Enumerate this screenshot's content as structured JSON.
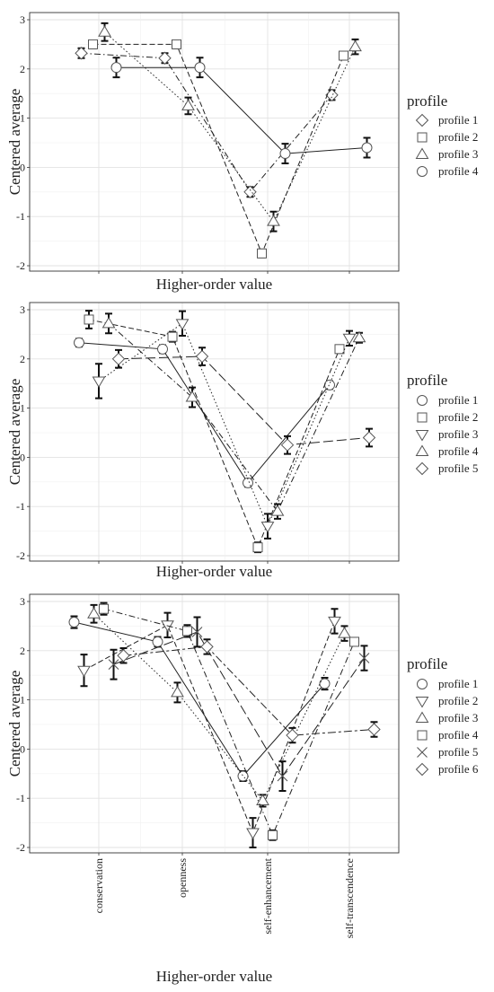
{
  "chart_data": [
    {
      "type": "line",
      "xlabel": "Higher-order value",
      "ylabel": "Centered average",
      "ylim": [
        -2,
        3
      ],
      "yticks": [
        "-2",
        "-1",
        "0",
        "1",
        "2",
        "3"
      ],
      "categories": [
        "conservation",
        "openness",
        "self-enhancement",
        "self-transcendence"
      ],
      "grid": true,
      "legend": {
        "title": "profile",
        "position": "right"
      },
      "series": [
        {
          "name": "profile 1",
          "marker": "diamond",
          "dash": "dashdot",
          "values": [
            2.32,
            2.22,
            -0.5,
            1.47
          ],
          "errors": [
            0.1,
            0.1,
            0.1,
            0.1
          ]
        },
        {
          "name": "profile 2",
          "marker": "square",
          "dash": "dash",
          "values": [
            2.5,
            2.5,
            -1.75,
            2.27
          ],
          "errors": [
            0.08,
            0.08,
            0.08,
            0.06
          ]
        },
        {
          "name": "profile 3",
          "marker": "triangle-up",
          "dash": "dotted",
          "values": [
            2.75,
            1.25,
            -1.1,
            2.45
          ],
          "errors": [
            0.18,
            0.17,
            0.2,
            0.15
          ]
        },
        {
          "name": "profile 4",
          "marker": "circle",
          "dash": "solid",
          "values": [
            2.03,
            2.03,
            0.28,
            0.4
          ],
          "errors": [
            0.2,
            0.2,
            0.2,
            0.2
          ]
        }
      ]
    },
    {
      "type": "line",
      "xlabel": "Higher-order value",
      "ylabel": "Centered average",
      "ylim": [
        -2,
        3
      ],
      "yticks": [
        "-2",
        "-1",
        "0",
        "1",
        "2",
        "3"
      ],
      "categories": [
        "conservation",
        "openness",
        "self-enhancement",
        "self-transcendence"
      ],
      "grid": true,
      "legend": {
        "title": "profile",
        "position": "right"
      },
      "series": [
        {
          "name": "profile 1",
          "marker": "circle",
          "dash": "solid",
          "values": [
            2.33,
            2.2,
            -0.52,
            1.47
          ],
          "errors": [
            0.08,
            0.08,
            0.08,
            0.08
          ]
        },
        {
          "name": "profile 2",
          "marker": "square",
          "dash": "dash",
          "values": [
            2.8,
            2.45,
            -1.83,
            2.2
          ],
          "errors": [
            0.18,
            0.1,
            0.1,
            0.08
          ]
        },
        {
          "name": "profile 3",
          "marker": "triangle-down",
          "dash": "dotted",
          "values": [
            1.55,
            2.72,
            -1.4,
            2.42
          ],
          "errors": [
            0.35,
            0.25,
            0.25,
            0.15
          ]
        },
        {
          "name": "profile 4",
          "marker": "triangle-up",
          "dash": "dashdot",
          "values": [
            2.72,
            1.22,
            -1.1,
            2.43
          ],
          "errors": [
            0.2,
            0.2,
            0.15,
            0.1
          ]
        },
        {
          "name": "profile 5",
          "marker": "diamond",
          "dash": "longdash",
          "values": [
            2.0,
            2.05,
            0.25,
            0.4
          ],
          "errors": [
            0.18,
            0.18,
            0.18,
            0.18
          ]
        }
      ]
    },
    {
      "type": "line",
      "xlabel": "Higher-order value",
      "ylabel": "Centered average",
      "ylim": [
        -2,
        3
      ],
      "yticks": [
        "-2",
        "-1",
        "0",
        "1",
        "2",
        "3"
      ],
      "categories": [
        "conservation",
        "openness",
        "self-enhancement",
        "self-transcendence"
      ],
      "grid": true,
      "legend": {
        "title": "profile",
        "position": "right"
      },
      "series": [
        {
          "name": "profile 1",
          "marker": "circle",
          "dash": "solid",
          "values": [
            2.58,
            2.18,
            -0.55,
            1.33
          ],
          "errors": [
            0.12,
            0.1,
            0.1,
            0.12
          ]
        },
        {
          "name": "profile 2",
          "marker": "triangle-down",
          "dash": "dashed",
          "values": [
            1.6,
            2.52,
            -1.7,
            2.6
          ],
          "errors": [
            0.32,
            0.25,
            0.3,
            0.25
          ]
        },
        {
          "name": "profile 3",
          "marker": "triangle-up",
          "dash": "dotted",
          "values": [
            2.75,
            1.15,
            -1.05,
            2.35
          ],
          "errors": [
            0.18,
            0.2,
            0.12,
            0.15
          ]
        },
        {
          "name": "profile 4",
          "marker": "square",
          "dash": "dashdot",
          "values": [
            2.85,
            2.4,
            -1.75,
            2.18
          ],
          "errors": [
            0.12,
            0.12,
            0.1,
            0.06
          ]
        },
        {
          "name": "profile 5",
          "marker": "cross",
          "dash": "longdash",
          "values": [
            1.72,
            2.38,
            -0.55,
            1.85
          ],
          "errors": [
            0.3,
            0.3,
            0.3,
            0.25
          ]
        },
        {
          "name": "profile 6",
          "marker": "diamond",
          "dash": "twodash",
          "values": [
            1.9,
            2.08,
            0.28,
            0.4
          ],
          "errors": [
            0.15,
            0.15,
            0.15,
            0.15
          ]
        }
      ]
    }
  ]
}
